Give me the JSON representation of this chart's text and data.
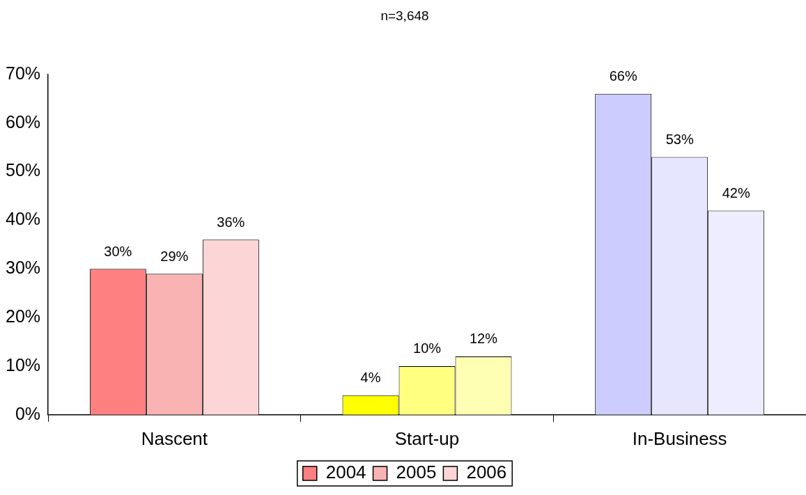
{
  "chart_data": {
    "type": "bar",
    "title": "n=3,648",
    "categories": [
      "Nascent",
      "Start-up",
      "In-Business"
    ],
    "series": [
      {
        "name": "2004",
        "color": "#ff8080",
        "colors": [
          "#ff8080",
          "#ffff00",
          "#ccccff"
        ],
        "values": [
          30,
          4,
          66
        ],
        "value_labels": [
          "30%",
          "4%",
          "66%"
        ]
      },
      {
        "name": "2005",
        "color": "#f9b3b3",
        "colors": [
          "#f9b3b3",
          "#ffff80",
          "#e6e6ff"
        ],
        "values": [
          29,
          10,
          53
        ],
        "value_labels": [
          "29%",
          "10%",
          "53%"
        ]
      },
      {
        "name": "2006",
        "color": "#fcd6d6",
        "colors": [
          "#fcd6d6",
          "#ffffb3",
          "#ededff"
        ],
        "values": [
          36,
          12,
          42
        ],
        "value_labels": [
          "36%",
          "12%",
          "42%"
        ]
      }
    ],
    "ylim": [
      0,
      70
    ],
    "yticks": [
      {
        "value": 0,
        "label": "0%"
      },
      {
        "value": 10,
        "label": "10%"
      },
      {
        "value": 20,
        "label": "20%"
      },
      {
        "value": 30,
        "label": "30%"
      },
      {
        "value": 40,
        "label": "40%"
      },
      {
        "value": 50,
        "label": "50%"
      },
      {
        "value": 60,
        "label": "60%"
      },
      {
        "value": 70,
        "label": "70%"
      }
    ],
    "grid": false,
    "legend": "bottom"
  }
}
